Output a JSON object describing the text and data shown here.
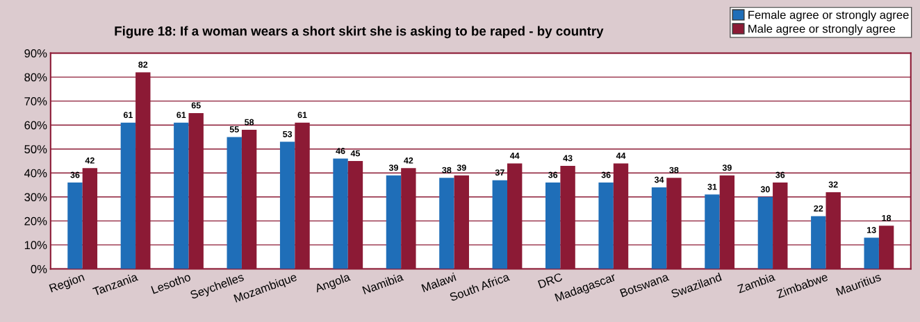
{
  "chart_data": {
    "type": "bar",
    "title": "Figure 18: If a woman wears a short skirt she is asking to be raped - by country",
    "categories": [
      "Region",
      "Tanzania",
      "Lesotho",
      "Seychelles",
      "Mozambique",
      "Angola",
      "Namibia",
      "Malawi",
      "South Africa",
      "DRC",
      "Madagascar",
      "Botswana",
      "Swaziland",
      "Zambia",
      "Zimbabwe",
      "Mauritius"
    ],
    "series": [
      {
        "name": "Female agree or strongly agree",
        "color": "#1f6eb8",
        "values": [
          36,
          61,
          61,
          55,
          53,
          46,
          39,
          38,
          37,
          36,
          36,
          34,
          31,
          30,
          22,
          13
        ]
      },
      {
        "name": "Male agree or strongly agree",
        "color": "#8c1a35",
        "values": [
          42,
          82,
          65,
          58,
          61,
          45,
          42,
          39,
          44,
          43,
          44,
          38,
          39,
          36,
          32,
          18
        ]
      }
    ],
    "ylim": [
      0,
      90
    ],
    "yticks": [
      {
        "value": 0,
        "label": "0%"
      },
      {
        "value": 10,
        "label": "10%"
      },
      {
        "value": 20,
        "label": "20%"
      },
      {
        "value": 30,
        "label": "30%"
      },
      {
        "value": 40,
        "label": "40%"
      },
      {
        "value": 50,
        "label": "50%"
      },
      {
        "value": 60,
        "label": "60%"
      },
      {
        "value": 70,
        "label": "70%"
      },
      {
        "value": 80,
        "label": "80%"
      },
      {
        "value": 90,
        "label": "90%"
      }
    ],
    "grid": "y",
    "legend": "top right",
    "data_labels": true
  }
}
